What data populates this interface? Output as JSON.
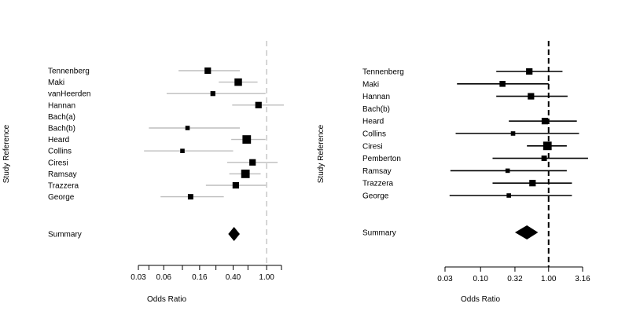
{
  "chart_data": [
    {
      "type": "forest",
      "ylabel": "Study Reference",
      "xlabel": "Odds Ratio",
      "scale": "log",
      "xlim": [
        0.03,
        1.5
      ],
      "xticks": [
        0.03,
        0.04,
        0.06,
        0.1,
        0.16,
        0.25,
        0.4,
        0.6,
        1.0,
        1.5
      ],
      "xtick_labels": [
        "0.03",
        "",
        "0.06",
        "",
        "0.16",
        "",
        "0.40",
        "",
        "1.00",
        ""
      ],
      "reference_line": 1.0,
      "reference_style": "dashed-gray",
      "ci_color": "#bdbdbd",
      "studies": [
        {
          "label": "Tennenberg",
          "or": 0.2,
          "lower": 0.09,
          "upper": 0.48,
          "weight": 4
        },
        {
          "label": "Maki",
          "or": 0.46,
          "lower": 0.27,
          "upper": 0.78,
          "weight": 5
        },
        {
          "label": "vanHeerden",
          "or": 0.23,
          "lower": 0.065,
          "upper": 0.97,
          "weight": 2.5
        },
        {
          "label": "Hannan",
          "or": 0.8,
          "lower": 0.39,
          "upper": 1.6,
          "weight": 4
        },
        {
          "label": "Bach(a)",
          "or": null,
          "lower": null,
          "upper": null,
          "weight": 0
        },
        {
          "label": "Bach(b)",
          "or": 0.115,
          "lower": 0.04,
          "upper": 0.48,
          "weight": 2
        },
        {
          "label": "Heard",
          "or": 0.58,
          "lower": 0.38,
          "upper": 0.97,
          "weight": 6
        },
        {
          "label": "Collins",
          "or": 0.1,
          "lower": 0.035,
          "upper": 0.4,
          "weight": 2
        },
        {
          "label": "Ciresi",
          "or": 0.68,
          "lower": 0.34,
          "upper": 1.35,
          "weight": 4
        },
        {
          "label": "Ramsay",
          "or": 0.56,
          "lower": 0.36,
          "upper": 0.85,
          "weight": 6
        },
        {
          "label": "Trazzera",
          "or": 0.43,
          "lower": 0.19,
          "upper": 0.98,
          "weight": 4
        },
        {
          "label": "George",
          "or": 0.125,
          "lower": 0.055,
          "upper": 0.31,
          "weight": 3
        }
      ],
      "summary": {
        "label": "Summary",
        "or": 0.41,
        "lower": 0.35,
        "upper": 0.48
      }
    },
    {
      "type": "forest",
      "ylabel": "Study Reference",
      "xlabel": "Odds Ratio",
      "scale": "log",
      "xlim": [
        0.03,
        3.16
      ],
      "xticks": [
        0.03,
        0.1,
        0.32,
        1.0,
        3.16
      ],
      "xtick_labels": [
        "0.03",
        "0.10",
        "0.32",
        "1.00",
        "3.16"
      ],
      "reference_line": 1.0,
      "reference_style": "dashed-black",
      "ci_color": "#000000",
      "studies": [
        {
          "label": "Tennenberg",
          "or": 0.52,
          "lower": 0.17,
          "upper": 1.6,
          "weight": 4
        },
        {
          "label": "Maki",
          "or": 0.21,
          "lower": 0.045,
          "upper": 1.0,
          "weight": 3.5
        },
        {
          "label": "Hannan",
          "or": 0.55,
          "lower": 0.17,
          "upper": 1.9,
          "weight": 4
        },
        {
          "label": "Bach(b)",
          "or": null,
          "lower": null,
          "upper": null,
          "weight": 0
        },
        {
          "label": "Heard",
          "or": 0.88,
          "lower": 0.26,
          "upper": 2.6,
          "weight": 4
        },
        {
          "label": "Collins",
          "or": 0.3,
          "lower": 0.043,
          "upper": 2.8,
          "weight": 2
        },
        {
          "label": "Ciresi",
          "or": 0.96,
          "lower": 0.48,
          "upper": 1.85,
          "weight": 6
        },
        {
          "label": "Pemberton",
          "or": 0.86,
          "lower": 0.15,
          "upper": 3.8,
          "weight": 3
        },
        {
          "label": "Ramsay",
          "or": 0.25,
          "lower": 0.036,
          "upper": 1.85,
          "weight": 2
        },
        {
          "label": "Trazzera",
          "or": 0.58,
          "lower": 0.15,
          "upper": 2.2,
          "weight": 4
        },
        {
          "label": "George",
          "or": 0.26,
          "lower": 0.035,
          "upper": 2.2,
          "weight": 2
        }
      ],
      "summary": {
        "label": "Summary",
        "or": 0.48,
        "lower": 0.32,
        "upper": 0.7
      }
    }
  ]
}
